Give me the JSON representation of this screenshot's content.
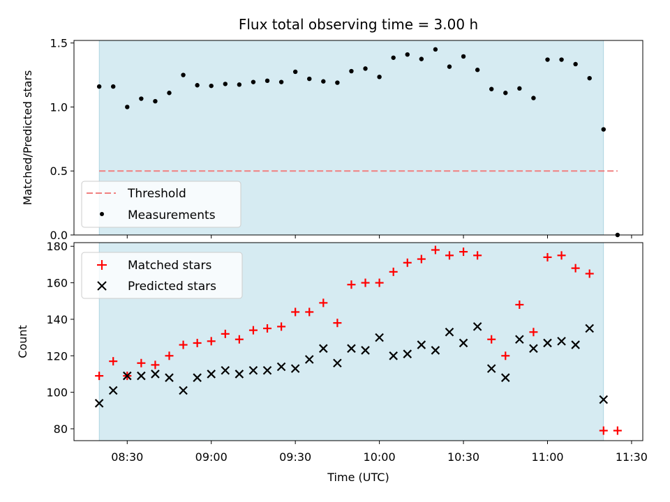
{
  "chart_data": [
    {
      "type": "scatter",
      "title": "Flux total observing time = 3.00 h",
      "xlabel": "",
      "ylabel": "Matched/Predicted stars",
      "xlim": [
        "08:11",
        "11:34"
      ],
      "ylim": [
        0,
        1.52
      ],
      "yticks": [
        "0.0",
        "0.5",
        "1.0",
        "1.5"
      ],
      "shaded_span": [
        "08:20",
        "11:20"
      ],
      "legend_position": "lower-left",
      "threshold": {
        "name": "Threshold",
        "value": 0.5,
        "x_range": [
          "08:20",
          "11:25"
        ],
        "color": "#f08080"
      },
      "series": [
        {
          "name": "Measurements",
          "color": "#000000",
          "x": [
            "08:20",
            "08:25",
            "08:30",
            "08:35",
            "08:40",
            "08:45",
            "08:50",
            "08:55",
            "09:00",
            "09:05",
            "09:10",
            "09:15",
            "09:20",
            "09:25",
            "09:30",
            "09:35",
            "09:40",
            "09:45",
            "09:50",
            "09:55",
            "10:00",
            "10:05",
            "10:10",
            "10:15",
            "10:20",
            "10:25",
            "10:30",
            "10:35",
            "10:40",
            "10:45",
            "10:50",
            "10:55",
            "11:00",
            "11:05",
            "11:10",
            "11:15",
            "11:20",
            "11:25"
          ],
          "values": [
            1.16,
            1.16,
            1.0,
            1.065,
            1.045,
            1.11,
            1.25,
            1.17,
            1.165,
            1.18,
            1.175,
            1.195,
            1.205,
            1.195,
            1.275,
            1.22,
            1.2,
            1.19,
            1.28,
            1.3,
            1.235,
            1.385,
            1.41,
            1.375,
            1.45,
            1.315,
            1.395,
            1.29,
            1.14,
            1.11,
            1.145,
            1.07,
            1.37,
            1.37,
            1.335,
            1.225,
            0.825,
            0.0
          ]
        }
      ]
    },
    {
      "type": "scatter",
      "title": "",
      "xlabel": "Time (UTC)",
      "ylabel": "Count",
      "xlim": [
        "08:11",
        "11:34"
      ],
      "ylim": [
        73.5,
        182
      ],
      "yticks": [
        "80",
        "100",
        "120",
        "140",
        "160",
        "180"
      ],
      "xticks": [
        "08:30",
        "09:00",
        "09:30",
        "10:00",
        "10:30",
        "11:00",
        "11:30"
      ],
      "shaded_span": [
        "08:20",
        "11:20"
      ],
      "legend_position": "upper-left",
      "series": [
        {
          "name": "Matched stars",
          "color": "#ff0000",
          "marker": "plus",
          "x": [
            "08:20",
            "08:25",
            "08:30",
            "08:35",
            "08:40",
            "08:45",
            "08:50",
            "08:55",
            "09:00",
            "09:05",
            "09:10",
            "09:15",
            "09:20",
            "09:25",
            "09:30",
            "09:35",
            "09:40",
            "09:45",
            "09:50",
            "09:55",
            "10:00",
            "10:05",
            "10:10",
            "10:15",
            "10:20",
            "10:25",
            "10:30",
            "10:35",
            "10:40",
            "10:45",
            "10:50",
            "10:55",
            "11:00",
            "11:05",
            "11:10",
            "11:15",
            "11:20",
            "11:25"
          ],
          "values": [
            109,
            117,
            109,
            116,
            115,
            120,
            126,
            127,
            128,
            132,
            129,
            134,
            135,
            136,
            144,
            144,
            149,
            138,
            159,
            160,
            160,
            166,
            171,
            173,
            178,
            175,
            177,
            175,
            129,
            120,
            148,
            133,
            174,
            175,
            168,
            165,
            79,
            79
          ]
        },
        {
          "name": "Predicted stars",
          "color": "#000000",
          "marker": "x",
          "x": [
            "08:20",
            "08:25",
            "08:30",
            "08:35",
            "08:40",
            "08:45",
            "08:50",
            "08:55",
            "09:00",
            "09:05",
            "09:10",
            "09:15",
            "09:20",
            "09:25",
            "09:30",
            "09:35",
            "09:40",
            "09:45",
            "09:50",
            "09:55",
            "10:00",
            "10:05",
            "10:10",
            "10:15",
            "10:20",
            "10:25",
            "10:30",
            "10:35",
            "10:40",
            "10:45",
            "10:50",
            "10:55",
            "11:00",
            "11:05",
            "11:10",
            "11:15",
            "11:20"
          ],
          "values": [
            94,
            101,
            109,
            109,
            110,
            108,
            101,
            108,
            110,
            112,
            110,
            112,
            112,
            114,
            113,
            118,
            124,
            116,
            124,
            123,
            130,
            120,
            121,
            126,
            123,
            133,
            127,
            136,
            113,
            108,
            129,
            124,
            127,
            128,
            126,
            135,
            96
          ]
        }
      ]
    }
  ]
}
